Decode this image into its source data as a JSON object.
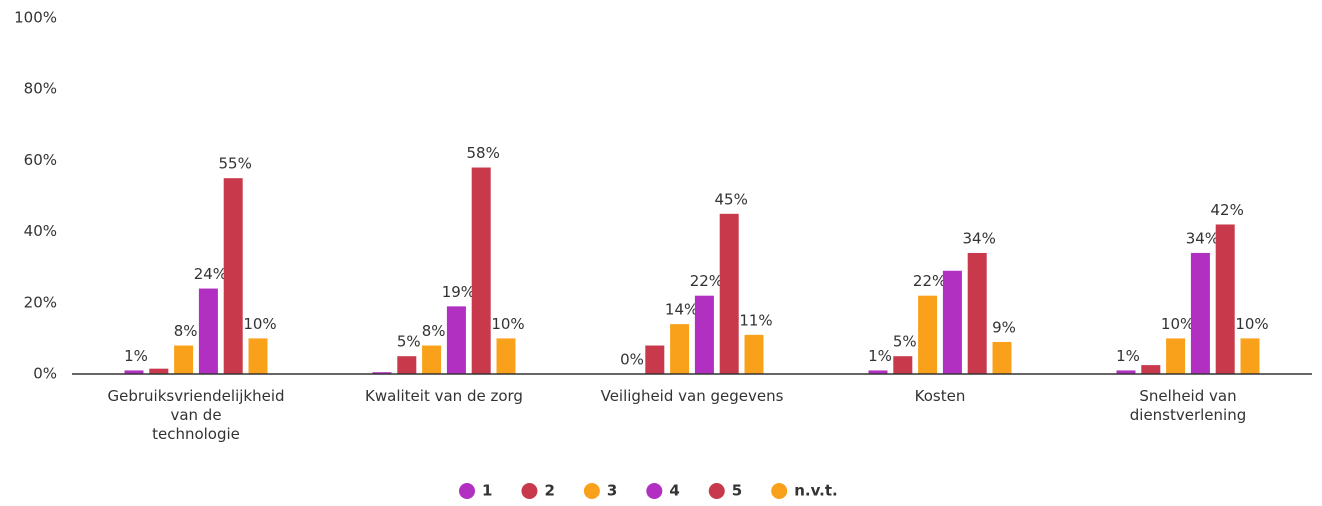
{
  "chart_data": {
    "type": "bar",
    "categories": [
      "Gebruiksvriendelijkheid\nvan de\ntechnologie",
      "Kwaliteit van de zorg",
      "Veiligheid van gegevens",
      "Kosten",
      "Snelheid van\ndienstverlening"
    ],
    "series": [
      {
        "name": "1",
        "color": "#b12fc1",
        "values": [
          1,
          0.5,
          0,
          1,
          1
        ],
        "value_labels": [
          "1%",
          null,
          "0%",
          "1%",
          "1%"
        ]
      },
      {
        "name": "2",
        "color": "#c83a4b",
        "values": [
          1.5,
          5,
          8,
          5,
          2.5
        ],
        "value_labels": [
          null,
          "5%",
          null,
          "5%",
          null
        ]
      },
      {
        "name": "3",
        "color": "#f9a11b",
        "values": [
          8,
          8,
          14,
          22,
          10
        ],
        "value_labels": [
          "8%",
          "8%",
          "14%",
          "22%",
          "10%"
        ]
      },
      {
        "name": "4",
        "color": "#b12fc1",
        "values": [
          24,
          19,
          22,
          29,
          34
        ],
        "value_labels": [
          "24%",
          "19%",
          "22%",
          null,
          "34%"
        ]
      },
      {
        "name": "5",
        "color": "#c83a4b",
        "values": [
          55,
          58,
          45,
          34,
          42
        ],
        "value_labels": [
          "55%",
          "58%",
          "45%",
          "34%",
          "42%"
        ]
      },
      {
        "name": "n.v.t.",
        "color": "#f9a11b",
        "values": [
          10,
          10,
          11,
          9,
          10
        ],
        "value_labels": [
          "10%",
          "10%",
          "11%",
          "9%",
          "10%"
        ]
      }
    ],
    "ylim": [
      0,
      100
    ],
    "yticks": [
      {
        "value": 0,
        "label": "0%"
      },
      {
        "value": 20,
        "label": "20%"
      },
      {
        "value": 40,
        "label": "40%"
      },
      {
        "value": 60,
        "label": "60%"
      },
      {
        "value": 80,
        "label": "80%"
      },
      {
        "value": 100,
        "label": "100%"
      }
    ],
    "legend": "bottom"
  }
}
